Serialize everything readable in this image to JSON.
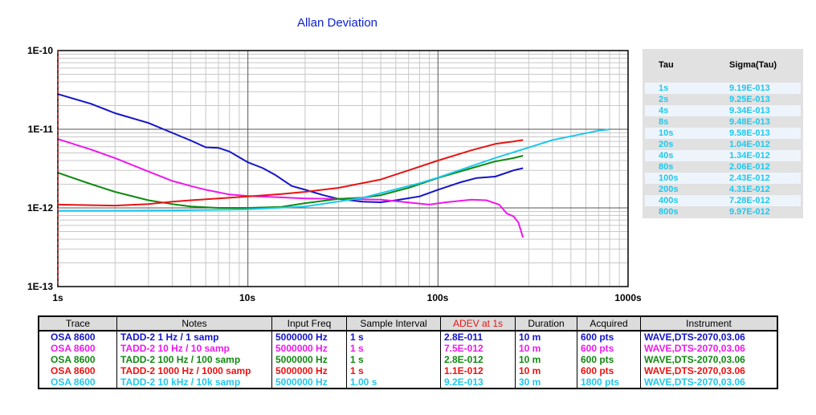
{
  "chart_data": {
    "type": "line",
    "title": "Allan Deviation",
    "x_scale": "log",
    "y_scale": "log",
    "xlim": [
      1,
      1000
    ],
    "ylim": [
      1e-13,
      1e-10
    ],
    "x_tick_labels": [
      "1s",
      "10s",
      "100s",
      "1000s"
    ],
    "y_tick_labels": [
      "1E-10",
      "1E-11",
      "1E-12",
      "1E-13"
    ],
    "grid": true,
    "series": [
      {
        "color": "#1414c8",
        "points": [
          [
            1,
            2.8e-11
          ],
          [
            1.5,
            2.1e-11
          ],
          [
            2,
            1.6e-11
          ],
          [
            3,
            1.2e-11
          ],
          [
            4,
            9e-12
          ],
          [
            5,
            7.2e-12
          ],
          [
            6,
            5.9e-12
          ],
          [
            7,
            5.8e-12
          ],
          [
            8,
            5.2e-12
          ],
          [
            9,
            4.4e-12
          ],
          [
            10,
            3.8e-12
          ],
          [
            12,
            3.2e-12
          ],
          [
            14,
            2.6e-12
          ],
          [
            17,
            1.9e-12
          ],
          [
            20,
            1.7e-12
          ],
          [
            25,
            1.45e-12
          ],
          [
            30,
            1.3e-12
          ],
          [
            40,
            1.2e-12
          ],
          [
            50,
            1.18e-12
          ],
          [
            60,
            1.25e-12
          ],
          [
            80,
            1.4e-12
          ],
          [
            100,
            1.7e-12
          ],
          [
            130,
            2.1e-12
          ],
          [
            160,
            2.4e-12
          ],
          [
            200,
            2.5e-12
          ],
          [
            250,
            3e-12
          ],
          [
            280,
            3.2e-12
          ]
        ]
      },
      {
        "color": "#ee18ee",
        "points": [
          [
            1,
            7.5e-12
          ],
          [
            1.5,
            5.5e-12
          ],
          [
            2,
            4.3e-12
          ],
          [
            3,
            2.9e-12
          ],
          [
            4,
            2.2e-12
          ],
          [
            5,
            1.9e-12
          ],
          [
            6,
            1.7e-12
          ],
          [
            8,
            1.48e-12
          ],
          [
            10,
            1.42e-12
          ],
          [
            15,
            1.36e-12
          ],
          [
            20,
            1.32e-12
          ],
          [
            30,
            1.3e-12
          ],
          [
            50,
            1.27e-12
          ],
          [
            70,
            1.17e-12
          ],
          [
            90,
            1.1e-12
          ],
          [
            110,
            1.18e-12
          ],
          [
            150,
            1.27e-12
          ],
          [
            180,
            1.25e-12
          ],
          [
            210,
            1.1e-12
          ],
          [
            230,
            8.5e-13
          ],
          [
            250,
            7.8e-13
          ],
          [
            265,
            6.5e-13
          ],
          [
            280,
            4.2e-13
          ]
        ]
      },
      {
        "color": "#108a10",
        "points": [
          [
            1,
            2.8e-12
          ],
          [
            1.5,
            2e-12
          ],
          [
            2,
            1.6e-12
          ],
          [
            3,
            1.25e-12
          ],
          [
            4,
            1.12e-12
          ],
          [
            5,
            1.04e-12
          ],
          [
            7,
            1e-12
          ],
          [
            10,
            1e-12
          ],
          [
            15,
            1.03e-12
          ],
          [
            20,
            1.15e-12
          ],
          [
            30,
            1.3e-12
          ],
          [
            40,
            1.35e-12
          ],
          [
            50,
            1.45e-12
          ],
          [
            70,
            1.8e-12
          ],
          [
            100,
            2.4e-12
          ],
          [
            150,
            3.2e-12
          ],
          [
            200,
            3.9e-12
          ],
          [
            250,
            4.3e-12
          ],
          [
            280,
            4.6e-12
          ]
        ]
      },
      {
        "color": "#e81414",
        "points": [
          [
            1,
            1.1e-12
          ],
          [
            2,
            1.07e-12
          ],
          [
            3,
            1.12e-12
          ],
          [
            4,
            1.2e-12
          ],
          [
            5,
            1.25e-12
          ],
          [
            7,
            1.32e-12
          ],
          [
            10,
            1.4e-12
          ],
          [
            15,
            1.5e-12
          ],
          [
            20,
            1.6e-12
          ],
          [
            30,
            1.8e-12
          ],
          [
            50,
            2.3e-12
          ],
          [
            70,
            3e-12
          ],
          [
            100,
            4e-12
          ],
          [
            150,
            5.4e-12
          ],
          [
            200,
            6.5e-12
          ],
          [
            250,
            7e-12
          ],
          [
            280,
            7.3e-12
          ]
        ]
      },
      {
        "color": "#1ec8ee",
        "points": [
          [
            1,
            9.2e-13
          ],
          [
            2,
            9.2e-13
          ],
          [
            4,
            9.3e-13
          ],
          [
            8,
            9.5e-13
          ],
          [
            10,
            9.6e-13
          ],
          [
            20,
            1.04e-12
          ],
          [
            40,
            1.34e-12
          ],
          [
            80,
            2.06e-12
          ],
          [
            100,
            2.43e-12
          ],
          [
            200,
            4.31e-12
          ],
          [
            400,
            7.28e-12
          ],
          [
            700,
            9.6e-12
          ],
          [
            800,
            9.97e-12
          ]
        ]
      }
    ]
  },
  "sigma_table": {
    "headers": {
      "tau": "Tau",
      "sigma": "Sigma(Tau)"
    },
    "text_color": "#1ec8ee",
    "rows": [
      {
        "tau": "1s",
        "sigma": "9.19E-013"
      },
      {
        "tau": "2s",
        "sigma": "9.25E-013"
      },
      {
        "tau": "4s",
        "sigma": "9.34E-013"
      },
      {
        "tau": "8s",
        "sigma": "9.48E-013"
      },
      {
        "tau": "10s",
        "sigma": "9.58E-013"
      },
      {
        "tau": "20s",
        "sigma": "1.04E-012"
      },
      {
        "tau": "40s",
        "sigma": "1.34E-012"
      },
      {
        "tau": "80s",
        "sigma": "2.06E-012"
      },
      {
        "tau": "100s",
        "sigma": "2.43E-012"
      },
      {
        "tau": "200s",
        "sigma": "4.31E-012"
      },
      {
        "tau": "400s",
        "sigma": "7.28E-012"
      },
      {
        "tau": "800s",
        "sigma": "9.97E-012"
      }
    ]
  },
  "trace_table": {
    "headers": {
      "trace": "Trace",
      "notes": "Notes",
      "input_freq": "Input Freq",
      "sample_interval": "Sample Interval",
      "adev": "ADEV at 1s",
      "duration": "Duration",
      "acquired": "Acquired",
      "instrument": "Instrument"
    },
    "adev_header_color": "#e81414",
    "rows": [
      {
        "color": "#1414c8",
        "trace": "OSA 8600",
        "notes": "TADD-2 1 Hz / 1 samp",
        "input_freq": "5000000 Hz",
        "sample_interval": "1 s",
        "adev": "2.8E-011",
        "duration": "10 m",
        "acquired": "600 pts",
        "instrument": "WAVE,DTS-2070,03.06"
      },
      {
        "color": "#ee18ee",
        "trace": "OSA 8600",
        "notes": "TADD-2 10 Hz / 10 samp",
        "input_freq": "5000000 Hz",
        "sample_interval": "1 s",
        "adev": "7.5E-012",
        "duration": "10 m",
        "acquired": "600 pts",
        "instrument": "WAVE,DTS-2070,03.06"
      },
      {
        "color": "#108a10",
        "trace": "OSA 8600",
        "notes": "TADD-2 100 Hz / 100 samp",
        "input_freq": "5000000 Hz",
        "sample_interval": "1 s",
        "adev": "2.8E-012",
        "duration": "10 m",
        "acquired": "600 pts",
        "instrument": "WAVE,DTS-2070,03.06"
      },
      {
        "color": "#e81414",
        "trace": "OSA 8600",
        "notes": "TADD-2 1000 Hz / 1000 samp",
        "input_freq": "5000000 Hz",
        "sample_interval": "1 s",
        "adev": "1.1E-012",
        "duration": "10 m",
        "acquired": "600 pts",
        "instrument": "WAVE,DTS-2070,03.06"
      },
      {
        "color": "#1ec8ee",
        "trace": "OSA 8600",
        "notes": "TADD-2 10 kHz / 10k samp",
        "input_freq": "5000000 Hz",
        "sample_interval": "1.00 s",
        "adev": "9.2E-013",
        "duration": "30 m",
        "acquired": "1800 pts",
        "instrument": "WAVE,DTS-2070,03.06"
      }
    ]
  }
}
